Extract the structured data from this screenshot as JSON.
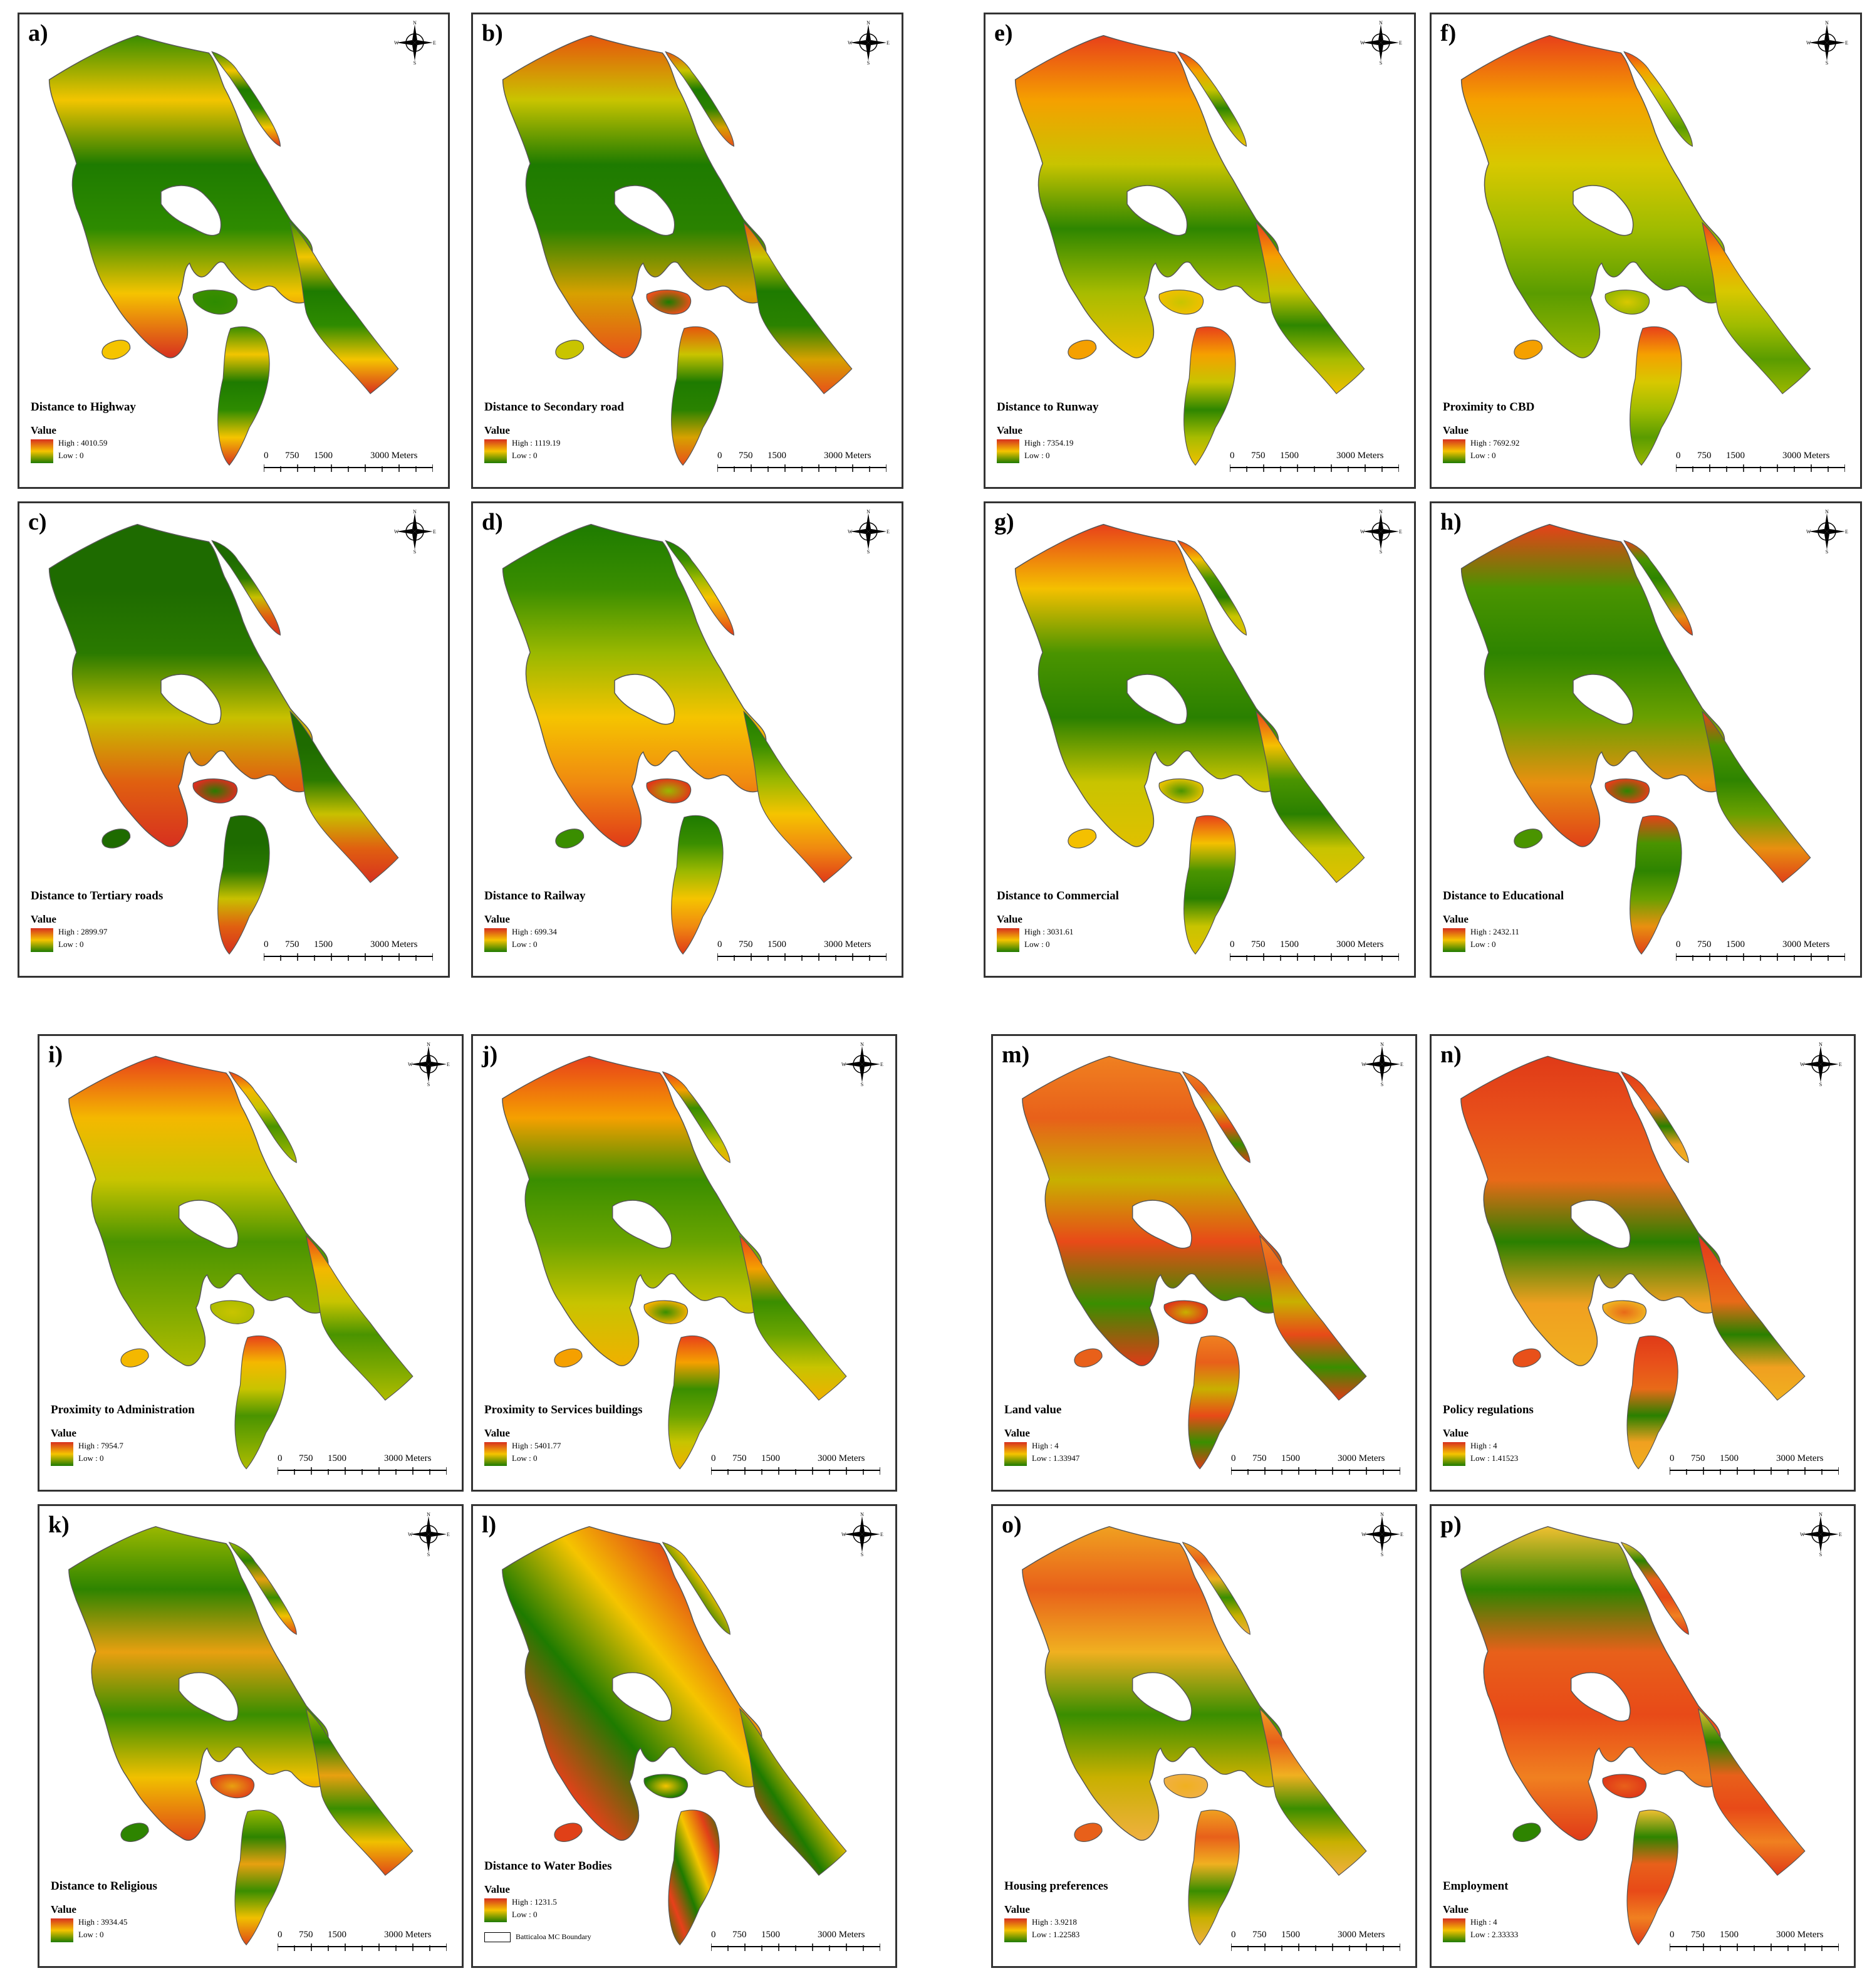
{
  "scale": {
    "ticks": [
      "0",
      "750",
      "1500",
      "3000 Meters"
    ]
  },
  "compass": {
    "n": "N",
    "s": "S",
    "e": "E",
    "w": "W"
  },
  "legend_common": {
    "value_label": "Value"
  },
  "panels": [
    {
      "label": "a)",
      "title": "Distance to Highway",
      "high": "High : 4010.59",
      "low": "Low : 0"
    },
    {
      "label": "b)",
      "title": "Distance to Secondary road",
      "high": "High : 1119.19",
      "low": "Low : 0"
    },
    {
      "label": "c)",
      "title": "Distance to Tertiary roads",
      "high": "High : 2899.97",
      "low": "Low : 0"
    },
    {
      "label": "d)",
      "title": "Distance to Railway",
      "high": "High : 699.34",
      "low": "Low : 0"
    },
    {
      "label": "e)",
      "title": "Distance to Runway",
      "high": "High : 7354.19",
      "low": "Low : 0"
    },
    {
      "label": "f)",
      "title": "Proximity to CBD",
      "high": "High : 7692.92",
      "low": "Low : 0"
    },
    {
      "label": "g)",
      "title": "Distance to Commercial",
      "high": "High : 3031.61",
      "low": "Low : 0"
    },
    {
      "label": "h)",
      "title": "Distance to Educational",
      "high": "High : 2432.11",
      "low": "Low : 0"
    },
    {
      "label": "i)",
      "title": "Proximity to Administration",
      "high": "High : 7954.7",
      "low": "Low : 0"
    },
    {
      "label": "j)",
      "title": "Proximity to Services buildings",
      "high": "High : 5401.77",
      "low": "Low : 0"
    },
    {
      "label": "k)",
      "title": "Distance to Religious",
      "high": "High : 3934.45",
      "low": "Low : 0"
    },
    {
      "label": "l)",
      "title": "Distance to Water Bodies",
      "high": "High : 1231.5",
      "low": "Low : 0",
      "boundary": "Batticaloa MC Boundary"
    },
    {
      "label": "m)",
      "title": "Land value",
      "high": "High : 4",
      "low": "Low : 1.33947"
    },
    {
      "label": "n)",
      "title": "Policy regulations",
      "high": "High : 4",
      "low": "Low : 1.41523"
    },
    {
      "label": "o)",
      "title": "Housing preferences",
      "high": "High : 3.9218",
      "low": "Low : 1.22583"
    },
    {
      "label": "p)",
      "title": "Employment",
      "high": "High : 4",
      "low": "Low : 2.33333"
    }
  ],
  "colors": {
    "high": "#d7301f",
    "mid": "#f5c400",
    "low": "#1e7b00"
  }
}
